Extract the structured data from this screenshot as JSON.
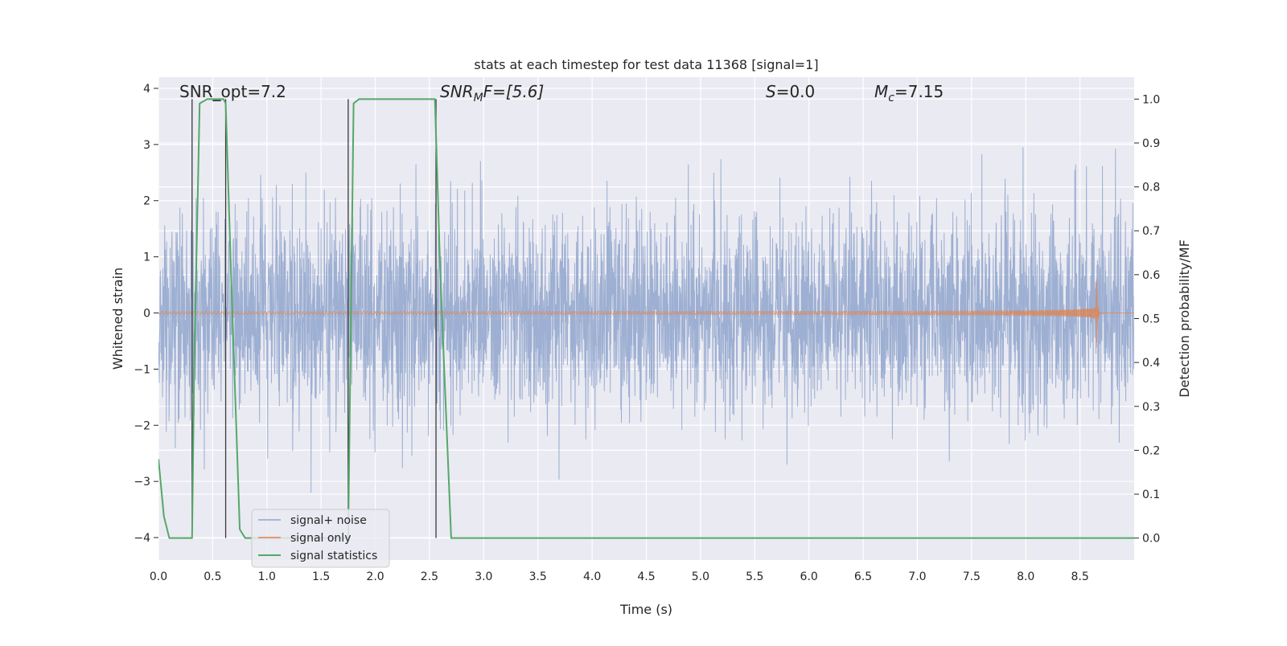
{
  "chart_data": {
    "type": "line",
    "title": "stats at each timestep for test data 11368 [signal=1]",
    "xlabel": "Time (s)",
    "ylabel": "Whitened strain",
    "y2label": "Detection probability/MF",
    "xlim": [
      0.0,
      9.0
    ],
    "ylim": [
      -4.4,
      4.2
    ],
    "y2lim": [
      -0.05,
      1.05
    ],
    "xticks": [
      0.0,
      0.5,
      1.0,
      1.5,
      2.0,
      2.5,
      3.0,
      3.5,
      4.0,
      4.5,
      5.0,
      5.5,
      6.0,
      6.5,
      7.0,
      7.5,
      8.0,
      8.5
    ],
    "yticks": [
      -4,
      -3,
      -2,
      -1,
      0,
      1,
      2,
      3,
      4
    ],
    "y2ticks": [
      0.0,
      0.1,
      0.2,
      0.3,
      0.4,
      0.5,
      0.6,
      0.7,
      0.8,
      0.9,
      1.0
    ],
    "grid": true,
    "legend_position": "bottom-left",
    "annotations": {
      "snr_opt": "SNR_opt=7.2",
      "snr_mf_main": "SNR",
      "snr_mf_sub": "M",
      "snr_mf_rest": "F=[5.6]",
      "s_main": "S",
      "s_rest": "=0.0",
      "mc_main": "M",
      "mc_sub": "c",
      "mc_rest": "=7.15"
    },
    "series": [
      {
        "name": "signal+ noise",
        "color": "#8fa4cd",
        "kind": "noise",
        "sigma": 0.9
      },
      {
        "name": "signal only",
        "color": "#dd8452",
        "kind": "chirp",
        "merger_time": 8.65,
        "peak_amplitude": 0.95
      },
      {
        "name": "signal statistics",
        "color": "#55a868",
        "axis": "y2",
        "x": [
          0.0,
          0.05,
          0.1,
          0.2,
          0.3,
          0.31,
          0.33,
          0.38,
          0.45,
          0.55,
          0.6,
          0.62,
          0.67,
          0.75,
          0.8,
          0.85,
          1.0,
          1.5,
          1.7,
          1.75,
          1.8,
          1.85,
          1.9,
          2.0,
          2.5,
          2.55,
          2.6,
          2.7,
          3.0,
          9.0
        ],
        "values": [
          0.18,
          0.05,
          0.0,
          0.0,
          0.0,
          0.0,
          0.4,
          0.99,
          1.0,
          1.0,
          1.0,
          0.99,
          0.6,
          0.02,
          0.0,
          0.0,
          0.0,
          0.0,
          0.0,
          0.0,
          0.99,
          1.0,
          1.0,
          1.0,
          1.0,
          1.0,
          0.6,
          0.0,
          0.0,
          0.0
        ]
      }
    ],
    "vertical_lines": [
      0.31,
      0.62,
      1.75,
      2.56
    ]
  }
}
